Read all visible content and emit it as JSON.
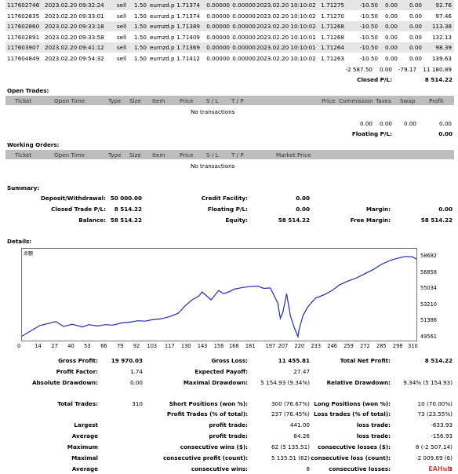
{
  "deals": [
    [
      "117602746",
      "2023.02.20 09:32:24",
      "sell",
      "1.50",
      "eurnzd.p",
      "1.71374",
      "0.00000",
      "0.00000",
      "2023.02.20 10:10:02",
      "1.71275",
      "-10.50",
      "0.00",
      "0.00",
      "92.76"
    ],
    [
      "117602835",
      "2023.02.20 09:33:01",
      "sell",
      "1.50",
      "eurnzd.p",
      "1.71374",
      "0.00000",
      "0.00000",
      "2023.02.20 10:10:02",
      "1.71270",
      "-10.50",
      "0.00",
      "0.00",
      "97.46"
    ],
    [
      "117602860",
      "2023.02.20 09:33:18",
      "sell",
      "1.50",
      "eurnzd.p",
      "1.71389",
      "0.00000",
      "0.00000",
      "2023.02.20 10:10:02",
      "1.71268",
      "-10.50",
      "0.00",
      "0.00",
      "113.38"
    ],
    [
      "117602891",
      "2023.02.20 09:33:58",
      "sell",
      "1.50",
      "eurnzd.p",
      "1.71409",
      "0.00000",
      "0.00000",
      "2023.02.20 10:10:01",
      "1.71268",
      "-10.50",
      "0.00",
      "0.00",
      "132.13"
    ],
    [
      "117603907",
      "2023.02.20 09:41:12",
      "sell",
      "1.50",
      "eurnzd.p",
      "1.71369",
      "0.00000",
      "0.00000",
      "2023.02.20 10:10:01",
      "1.71264",
      "-10.50",
      "0.00",
      "0.00",
      "98.39"
    ],
    [
      "117604849",
      "2023.02.20 09:54:32",
      "sell",
      "1.50",
      "eurnzd.p",
      "1.71412",
      "0.00000",
      "0.00000",
      "2023.02.20 10:10:02",
      "1.71263",
      "-10.50",
      "0.00",
      "0.00",
      "139.63"
    ]
  ],
  "closed_totals": {
    "commission": "-2 587.50",
    "taxes": "0.00",
    "swap": "-79.17",
    "profit": "11 180.89",
    "label": "Closed P/L:",
    "value": "8 514.22"
  },
  "open_trades": {
    "title": "Open Trades:",
    "headers": [
      "Ticket",
      "Open Time",
      "Type",
      "Size",
      "Item",
      "Price",
      "S / L",
      "T / P",
      "Price",
      "Commission",
      "Taxes",
      "Swap",
      "Profit"
    ],
    "empty": "No transactions",
    "totals": [
      "0.00",
      "0.00",
      "0.00",
      "0.00"
    ],
    "floating_label": "Floating P/L:",
    "floating_value": "0.00"
  },
  "working_orders": {
    "title": "Working Orders:",
    "headers": [
      "Ticket",
      "Open Time",
      "Type",
      "Size",
      "Item",
      "Price",
      "S / L",
      "T / P",
      "Market Price"
    ],
    "empty": "No transactions"
  },
  "summary": {
    "title": "Summary:",
    "deposit_label": "Deposit/Withdrawal:",
    "deposit": "50 000.00",
    "credit_label": "Credit Facility:",
    "credit": "0.00",
    "closed_label": "Closed Trade P/L:",
    "closed": "8 514.22",
    "floating_label": "Floating P/L:",
    "floating": "0.00",
    "margin_label": "Margin:",
    "margin": "0.00",
    "balance_label": "Balance:",
    "balance": "58 514.22",
    "equity_label": "Equity:",
    "equity": "58 514.22",
    "free_margin_label": "Free Margin:",
    "free_margin": "58 514.22"
  },
  "details": {
    "title": "Details:",
    "chart_corner_label": "余额"
  },
  "chart_data": {
    "type": "line",
    "title": "",
    "xlabel": "",
    "ylabel": "",
    "x_ticks": [
      0,
      14,
      27,
      40,
      53,
      66,
      79,
      92,
      103,
      117,
      130,
      143,
      156,
      168,
      181,
      197,
      207,
      220,
      233,
      246,
      259,
      272,
      285,
      298,
      310
    ],
    "y_ticks": [
      58682,
      56858,
      55034,
      53210,
      51386,
      49561
    ],
    "ylim": [
      49561,
      58682
    ],
    "xlim": [
      0,
      313
    ],
    "x": [
      0,
      14,
      27,
      33,
      40,
      48,
      53,
      60,
      66,
      72,
      79,
      86,
      92,
      98,
      103,
      110,
      117,
      124,
      130,
      135,
      140,
      143,
      150,
      156,
      160,
      165,
      168,
      175,
      181,
      187,
      192,
      197,
      200,
      203,
      205,
      207,
      210,
      213,
      216,
      219,
      220,
      223,
      227,
      233,
      240,
      246,
      252,
      259,
      265,
      272,
      279,
      285,
      292,
      298,
      304,
      310,
      313
    ],
    "values": [
      49700,
      50900,
      51350,
      50800,
      51050,
      50750,
      51000,
      50850,
      51000,
      50950,
      51200,
      51300,
      51450,
      51400,
      51550,
      51650,
      51900,
      52300,
      53200,
      53800,
      54200,
      54700,
      53800,
      54850,
      54500,
      54750,
      55000,
      55200,
      55300,
      55350,
      55100,
      55150,
      54300,
      53450,
      51700,
      52400,
      54500,
      52000,
      50700,
      49650,
      50500,
      52050,
      53050,
      54000,
      54400,
      54850,
      55500,
      55950,
      56250,
      56750,
      57250,
      57800,
      58250,
      58500,
      58700,
      58650,
      58400
    ],
    "grid": false,
    "legend": "none"
  },
  "stats": {
    "gross_profit_label": "Gross Profit:",
    "gross_profit": "19 970.03",
    "gross_loss_label": "Gross Loss:",
    "gross_loss": "11 455.81",
    "total_net_label": "Total Net Profit:",
    "total_net": "8 514.22",
    "profit_factor_label": "Profit Factor:",
    "profit_factor": "1.74",
    "expected_payoff_label": "Expected Payoff:",
    "expected_payoff": "27.47",
    "abs_dd_label": "Absolute Drawdown:",
    "abs_dd": "0.00",
    "max_dd_label": "Maximal Drawdown:",
    "max_dd": "5 154.93 (9.34%)",
    "rel_dd_label": "Relative Drawdown:",
    "rel_dd": "9.34% (5 154.93)",
    "total_trades_label": "Total Trades:",
    "total_trades": "310",
    "short_label": "Short Positions (won %):",
    "short": "300 (76.67%)",
    "long_label": "Long Positions (won %):",
    "long": "10 (70.00%)",
    "profit_trades_label": "Profit Trades (% of total):",
    "profit_trades": "237 (76.45%)",
    "loss_trades_label": "Loss trades (% of total):",
    "loss_trades": "73 (23.55%)",
    "largest_label": "Largest",
    "largest_profit_label": "profit trade:",
    "largest_profit": "441.00",
    "largest_loss_label": "loss trade:",
    "largest_loss": "-633.93",
    "average_label": "Average",
    "average_profit_label": "profit trade:",
    "average_profit": "84.26",
    "average_loss_label": "loss trade:",
    "average_loss": "-156.93",
    "maximum_label": "Maximum",
    "cons_wins_label": "consecutive wins ($):",
    "cons_wins": "62 (5 135.51)",
    "cons_losses_label": "consecutive losses ($):",
    "cons_losses": "8 (-2 507.14)",
    "maximal_label": "Maximal",
    "cons_profit_label": "consecutive profit (count):",
    "cons_profit": "5 135.51 (62)",
    "cons_loss_label": "consecutive loss (count):",
    "cons_loss": "-2 009.69 (6)",
    "avg2_label": "Average",
    "avg_cons_wins_label": "consecutive wins:",
    "avg_cons_wins": "8",
    "avg_cons_losses_label": "consecutive losses:",
    "avg_cons_losses": "3"
  },
  "watermark": "EAHub"
}
